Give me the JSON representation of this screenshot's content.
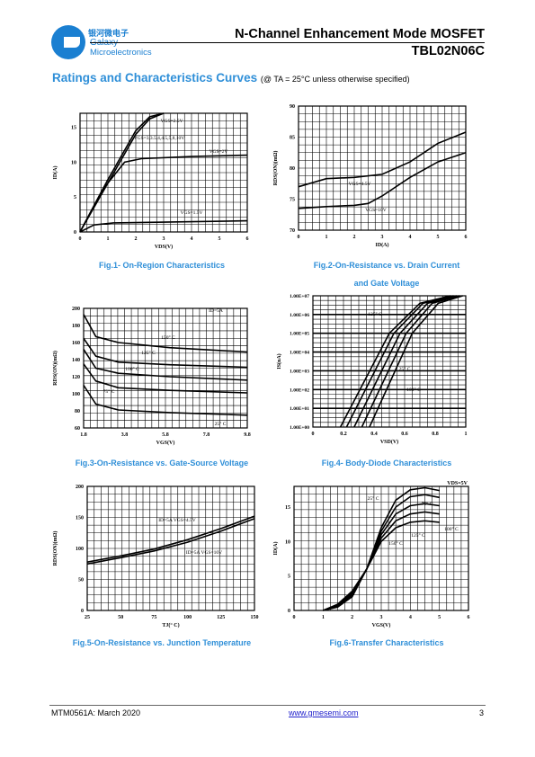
{
  "header": {
    "logo_cn": "银河微电子",
    "logo_en1": "Galaxy",
    "logo_en2": "Microelectronics",
    "title": "N-Channel Enhancement Mode MOSFET",
    "part": "TBL02N06C"
  },
  "section": {
    "title": "Ratings and Characteristics Curves",
    "condition": "(@ TA = 25°C unless otherwise specified)"
  },
  "footer": {
    "left": "MTM0561A: March 2020",
    "link": "www.gmesemi.com",
    "page": "3"
  },
  "colors": {
    "accent": "#2f8fd8",
    "link": "#2222cc"
  },
  "chart_data": [
    {
      "type": "line",
      "caption": "Fig.1- On-Region Characteristics",
      "xlabel": "VDS(V)",
      "ylabel": "ID(A)",
      "xlim": [
        0,
        6
      ],
      "ylim": [
        0,
        17
      ],
      "xticks": [
        "0",
        "1",
        "2",
        "3",
        "4",
        "5",
        "6"
      ],
      "yticks": [
        "0",
        "5",
        "10",
        "15"
      ],
      "annotations": [
        "VGS=2.5V",
        "VGS=3,3.5,4,4.5,5,8,10V",
        "VGS=2V",
        "VGS=1.5V"
      ],
      "series": [
        {
          "points": [
            [
              0,
              0
            ],
            [
              1,
              7.5
            ],
            [
              2,
              14.5
            ],
            [
              2.5,
              16.5
            ],
            [
              3,
              17
            ]
          ]
        },
        {
          "points": [
            [
              0,
              0
            ],
            [
              1,
              7
            ],
            [
              2,
              14
            ],
            [
              2.5,
              16.2
            ],
            [
              3,
              17
            ]
          ]
        },
        {
          "points": [
            [
              0,
              0
            ],
            [
              0.8,
              6
            ],
            [
              1.6,
              10
            ],
            [
              2.2,
              10.5
            ],
            [
              4,
              10.8
            ],
            [
              6,
              11
            ]
          ]
        },
        {
          "points": [
            [
              0,
              0
            ],
            [
              0.5,
              1
            ],
            [
              1.2,
              1.3
            ],
            [
              3,
              1.4
            ],
            [
              6,
              1.6
            ]
          ]
        }
      ]
    },
    {
      "type": "line",
      "caption_lines": [
        "Fig.2-On-Resistance vs. Drain Current",
        "and Gate Voltage"
      ],
      "xlabel": "ID(A)",
      "ylabel": "RDS(ON)(mΩ)",
      "xlim": [
        0,
        6
      ],
      "ylim": [
        70,
        90
      ],
      "xticks": [
        "0",
        "1",
        "2",
        "3",
        "4",
        "5",
        "6"
      ],
      "yticks": [
        "70",
        "75",
        "80",
        "85",
        "90"
      ],
      "annotations": [
        "VGS=4.5V",
        "VGS=10V"
      ],
      "series": [
        {
          "points": [
            [
              0,
              77
            ],
            [
              1,
              78.3
            ],
            [
              2,
              78.5
            ],
            [
              3,
              79
            ],
            [
              4,
              81
            ],
            [
              5,
              84
            ],
            [
              6,
              85.8
            ]
          ]
        },
        {
          "points": [
            [
              0,
              73.5
            ],
            [
              1,
              73.8
            ],
            [
              2,
              74
            ],
            [
              2.5,
              74.3
            ],
            [
              3,
              75.5
            ],
            [
              4,
              78.5
            ],
            [
              5,
              81
            ],
            [
              6,
              82.5
            ]
          ]
        }
      ]
    },
    {
      "type": "line",
      "caption": "Fig.3-On-Resistance vs. Gate-Source Voltage",
      "xlabel": "VGS(V)",
      "ylabel": "RDS(ON)(mΩ)",
      "xlim": [
        1.8,
        9.8
      ],
      "ylim": [
        60,
        200
      ],
      "xticks": [
        "1.8",
        "3.8",
        "5.8",
        "7.8",
        "9.8"
      ],
      "yticks": [
        "60",
        "80",
        "100",
        "120",
        "140",
        "160",
        "180",
        "200"
      ],
      "annotations": [
        "ID=5A",
        "150° C",
        "125° C",
        "100° C",
        "75° C",
        "25° C"
      ],
      "series": [
        {
          "name": "150° C",
          "points": [
            [
              1.8,
              193
            ],
            [
              2.4,
              167
            ],
            [
              3.5,
              160
            ],
            [
              6,
              154
            ],
            [
              9.8,
              149
            ]
          ]
        },
        {
          "name": "125° C",
          "points": [
            [
              1.8,
              165
            ],
            [
              2.4,
              144
            ],
            [
              3.5,
              137
            ],
            [
              6,
              134
            ],
            [
              9.8,
              131
            ]
          ]
        },
        {
          "name": "100° C",
          "points": [
            [
              1.8,
              152
            ],
            [
              2.4,
              130
            ],
            [
              3.5,
              124
            ],
            [
              6,
              120
            ],
            [
              9.8,
              116
            ]
          ]
        },
        {
          "name": "75° C",
          "points": [
            [
              1.8,
              135
            ],
            [
              2.4,
              115
            ],
            [
              3.5,
              107
            ],
            [
              6,
              104
            ],
            [
              9.8,
              101
            ]
          ]
        },
        {
          "name": "25° C",
          "points": [
            [
              1.8,
              110
            ],
            [
              2.4,
              88
            ],
            [
              3.5,
              81
            ],
            [
              6,
              78
            ],
            [
              9.8,
              75
            ]
          ]
        }
      ]
    },
    {
      "type": "line",
      "caption": "Fig.4- Body-Diode Characteristics",
      "xlabel": "VSD(V)",
      "ylabel": "IS(nA)",
      "xlim": [
        0,
        1
      ],
      "ylim": [
        0,
        7
      ],
      "xticks": [
        "0",
        "0.2",
        "0.4",
        "0.6",
        "0.8",
        "1"
      ],
      "yticks": [
        "1.00E+00",
        "1.00E+01",
        "1.00E+02",
        "1.00E+03",
        "1.00E+04",
        "1.00E+05",
        "1.00E+06",
        "1.00E+07"
      ],
      "annotations": [
        "125° C",
        "25° C",
        "100° C"
      ],
      "series": [
        {
          "points": [
            [
              0.18,
              0
            ],
            [
              0.5,
              5
            ],
            [
              0.7,
              6.6
            ],
            [
              0.9,
              7
            ]
          ]
        },
        {
          "points": [
            [
              0.22,
              0
            ],
            [
              0.53,
              5
            ],
            [
              0.72,
              6.6
            ],
            [
              0.92,
              7
            ]
          ]
        },
        {
          "points": [
            [
              0.27,
              0
            ],
            [
              0.57,
              5
            ],
            [
              0.75,
              6.6
            ],
            [
              0.94,
              7
            ]
          ]
        },
        {
          "points": [
            [
              0.32,
              0
            ],
            [
              0.61,
              5
            ],
            [
              0.78,
              6.6
            ],
            [
              0.96,
              7
            ]
          ]
        },
        {
          "points": [
            [
              0.37,
              0
            ],
            [
              0.65,
              5
            ],
            [
              0.82,
              6.6
            ],
            [
              0.98,
              7
            ]
          ]
        }
      ]
    },
    {
      "type": "line",
      "caption": "Fig.5-On-Resistance vs. Junction Temperature",
      "xlabel": "TJ(° C)",
      "ylabel": "RDS(ON)(mΩ)",
      "xlim": [
        25,
        150
      ],
      "ylim": [
        0,
        200
      ],
      "xticks": [
        "25",
        "50",
        "75",
        "100",
        "125",
        "150"
      ],
      "yticks": [
        "0",
        "50",
        "100",
        "150",
        "200"
      ],
      "annotations": [
        "ID=5A VGS=4.5V",
        "ID=5A VGS=10V"
      ],
      "series": [
        {
          "points": [
            [
              25,
              78
            ],
            [
              50,
              88
            ],
            [
              75,
              99
            ],
            [
              100,
              114
            ],
            [
              125,
              132
            ],
            [
              150,
              152
            ]
          ]
        },
        {
          "points": [
            [
              25,
              75
            ],
            [
              50,
              85
            ],
            [
              75,
              96
            ],
            [
              100,
              110
            ],
            [
              125,
              128
            ],
            [
              150,
              148
            ]
          ]
        }
      ]
    },
    {
      "type": "line",
      "caption": "Fig.6-Transfer Characteristics",
      "xlabel": "VGS(V)",
      "ylabel": "ID(A)",
      "xlim": [
        0,
        6
      ],
      "ylim": [
        0,
        18
      ],
      "xticks": [
        "0",
        "1",
        "2",
        "3",
        "4",
        "5",
        "6"
      ],
      "yticks": [
        "0",
        "5",
        "10",
        "15"
      ],
      "legend": "VDS=5V",
      "annotations": [
        "25° C",
        "75° C",
        "100° C",
        "125° C",
        "150° C"
      ],
      "series": [
        {
          "name": "25° C",
          "points": [
            [
              1,
              0
            ],
            [
              1.5,
              0.5
            ],
            [
              2,
              2
            ],
            [
              2.5,
              6
            ],
            [
              3,
              12
            ],
            [
              3.5,
              16
            ],
            [
              4,
              17.5
            ],
            [
              4.5,
              17.8
            ],
            [
              5,
              17.4
            ]
          ]
        },
        {
          "name": "75° C",
          "points": [
            [
              1,
              0
            ],
            [
              1.5,
              0.6
            ],
            [
              2,
              2.2
            ],
            [
              2.5,
              6
            ],
            [
              3,
              11.5
            ],
            [
              3.5,
              15
            ],
            [
              4,
              16.5
            ],
            [
              4.5,
              16.8
            ],
            [
              5,
              16.4
            ]
          ]
        },
        {
          "name": "100° C",
          "points": [
            [
              1,
              0
            ],
            [
              1.5,
              0.7
            ],
            [
              2,
              2.4
            ],
            [
              2.5,
              6
            ],
            [
              3,
              11
            ],
            [
              3.5,
              14
            ],
            [
              4,
              15.2
            ],
            [
              4.5,
              15.5
            ],
            [
              5,
              15.2
            ]
          ]
        },
        {
          "name": "125° C",
          "points": [
            [
              1,
              0
            ],
            [
              1.5,
              0.8
            ],
            [
              2,
              2.6
            ],
            [
              2.5,
              6
            ],
            [
              3,
              10.5
            ],
            [
              3.5,
              13
            ],
            [
              4,
              14
            ],
            [
              4.5,
              14.3
            ],
            [
              5,
              14
            ]
          ]
        },
        {
          "name": "150° C",
          "points": [
            [
              1,
              0
            ],
            [
              1.5,
              0.9
            ],
            [
              2,
              2.8
            ],
            [
              2.5,
              6
            ],
            [
              3,
              10
            ],
            [
              3.5,
              12
            ],
            [
              4,
              12.8
            ],
            [
              4.5,
              13
            ],
            [
              5,
              12.8
            ]
          ]
        }
      ]
    }
  ]
}
